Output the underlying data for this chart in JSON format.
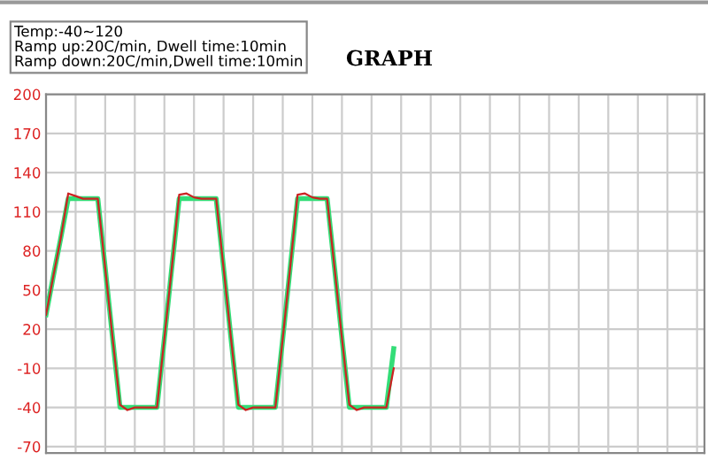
{
  "chart_data": {
    "type": "line",
    "title": "GRAPH",
    "annotations": [
      "Temp:-40~120\nRamp up:20C/min, Dwell time:10min\nRamp down:20C/min,Dwell time:10min"
    ],
    "categories": [
      null,
      null,
      null,
      null,
      null,
      null,
      null,
      null,
      null,
      null,
      null,
      null,
      null,
      null,
      null,
      null,
      null,
      null,
      null,
      null,
      null,
      null,
      null,
      null,
      null,
      null,
      null,
      null,
      null,
      null,
      null,
      null,
      null,
      null,
      null,
      null,
      null,
      null,
      null,
      null,
      null,
      null,
      null,
      null,
      null,
      null,
      null,
      null,
      null,
      null,
      null,
      null,
      null,
      null,
      null,
      null,
      null,
      null,
      null,
      null,
      null,
      null,
      null,
      null,
      null,
      null,
      null,
      null,
      null,
      null,
      null,
      null,
      null,
      null,
      null,
      null,
      null,
      null,
      null,
      null,
      null,
      null,
      null,
      null,
      null,
      null,
      null,
      null,
      null,
      null
    ],
    "series": [
      {
        "color": "#cc2222",
        "values": [
          31,
          61,
          90,
          124,
          122,
          120,
          120,
          120,
          67,
          13,
          -38,
          -42,
          -40,
          -40,
          -40,
          -40,
          13,
          67,
          123,
          124,
          121,
          120,
          120,
          120,
          67,
          13,
          -38,
          -42,
          -40,
          -40,
          -40,
          -40,
          13,
          67,
          123,
          124,
          121,
          120,
          120,
          67,
          13,
          -38,
          -42,
          -40,
          -40,
          -40,
          -40,
          -10,
          null,
          null,
          null,
          null,
          null,
          null,
          null,
          null,
          null,
          null,
          null,
          null,
          null,
          null,
          null,
          null,
          null,
          null,
          null,
          null,
          null,
          null,
          null,
          null,
          null,
          null,
          null,
          null,
          null,
          null,
          null,
          null,
          null,
          null,
          null,
          null,
          null,
          null,
          null,
          null,
          null,
          null
        ]
      },
      {
        "color": "#33dd77",
        "values": [
          31,
          61,
          90,
          120,
          120,
          120,
          120,
          120,
          67,
          13,
          -40,
          -40,
          -40,
          -40,
          -40,
          -40,
          13,
          67,
          120,
          120,
          120,
          120,
          120,
          120,
          67,
          13,
          -40,
          -40,
          -40,
          -40,
          -40,
          -40,
          13,
          67,
          120,
          120,
          120,
          120,
          120,
          67,
          13,
          -40,
          -40,
          -40,
          -40,
          -40,
          -40,
          5,
          null,
          null,
          null,
          null,
          null,
          null,
          null,
          null,
          null,
          null,
          null,
          null,
          null,
          null,
          null,
          null,
          null,
          null,
          null,
          null,
          null,
          null,
          null,
          null,
          null,
          null,
          null,
          null,
          null,
          null,
          null,
          null,
          null,
          null,
          null,
          null,
          null,
          null,
          null,
          null,
          null,
          null
        ]
      }
    ],
    "ylim": [
      -75,
      200
    ],
    "yticks": [
      200,
      170,
      140,
      110,
      80,
      50,
      20,
      -10,
      -40,
      -70
    ],
    "grid": true,
    "tick_labels": "y",
    "marker": "none",
    "line_style": "solid"
  }
}
